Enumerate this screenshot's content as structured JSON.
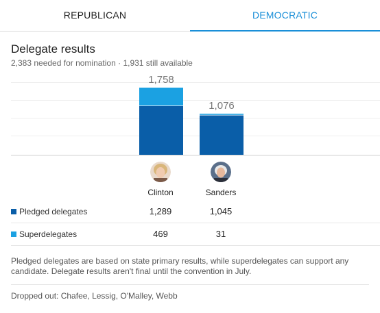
{
  "tabs": [
    {
      "label": "REPUBLICAN",
      "active": false
    },
    {
      "label": "DEMOCRATIC",
      "active": true
    }
  ],
  "colors": {
    "accent": "#1a8fd8",
    "pledged": "#0a5ea8",
    "super": "#1ba1e2"
  },
  "header": {
    "title": "Delegate results",
    "subtitle": "2,383 needed for nomination · 1,931 still available"
  },
  "chart_data": {
    "type": "bar",
    "stacked": true,
    "categories": [
      "Clinton",
      "Sanders"
    ],
    "series": [
      {
        "name": "Pledged delegates",
        "values": [
          1289,
          1045
        ]
      },
      {
        "name": "Superdelegates",
        "values": [
          469,
          31
        ]
      }
    ],
    "totals": [
      "1,758",
      "1,076"
    ],
    "ylim": [
      0,
      1900
    ]
  },
  "candidates": [
    {
      "name": "Clinton",
      "pledged": "1,289",
      "super": "469"
    },
    {
      "name": "Sanders",
      "pledged": "1,045",
      "super": "31"
    }
  ],
  "rows": {
    "pledged_label": "Pledged delegates",
    "super_label": "Superdelegates"
  },
  "note": "Pledged delegates are based on state primary results, while superdelegates can support any candidate. Delegate results aren't final until the convention in July.",
  "dropped_out": "Dropped out: Chafee, Lessig, O'Malley, Webb"
}
